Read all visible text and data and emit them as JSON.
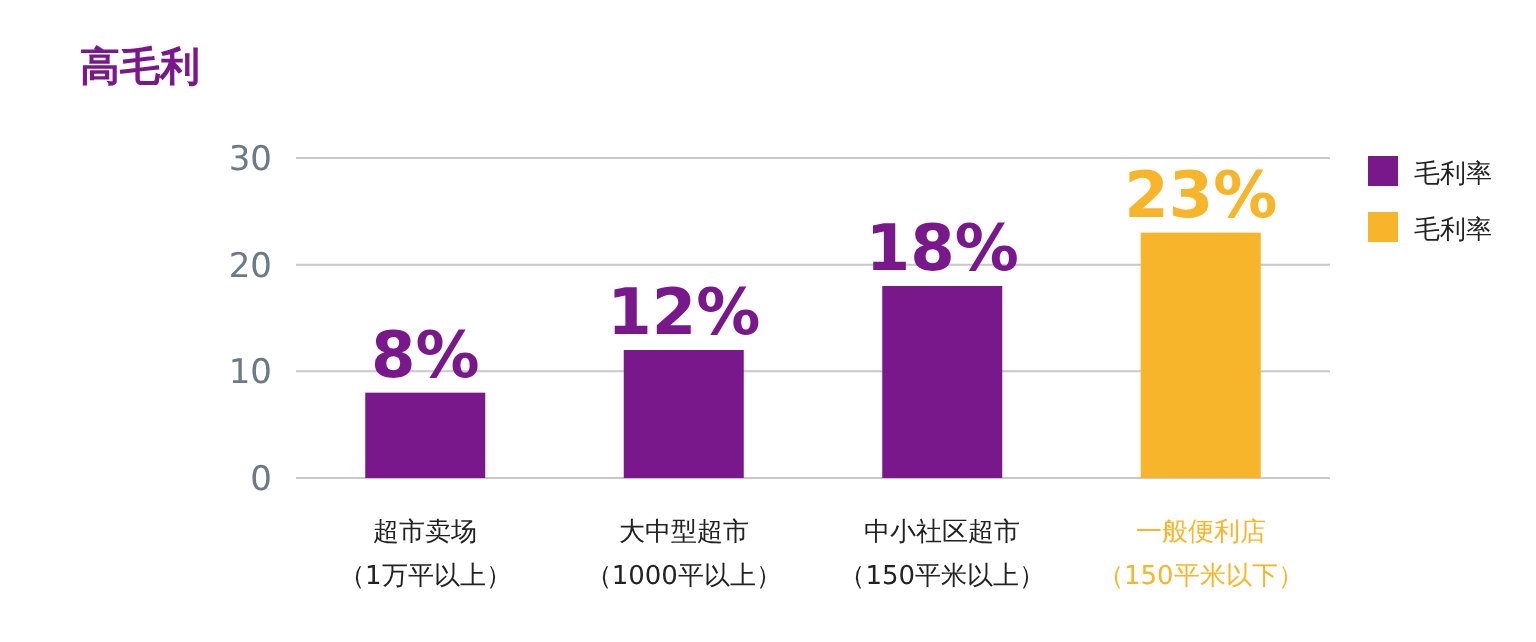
{
  "chart_data": {
    "type": "bar",
    "title": "高毛利",
    "categories": [
      "超市卖场（1万平以上）",
      "大中型超市（1000平以上）",
      "中小社区超市（150平米以上）",
      "一般便利店（150平米以下）"
    ],
    "series": [
      {
        "name": "毛利率",
        "color": "#78188a",
        "values": [
          8,
          12,
          18,
          null
        ],
        "value_labels": [
          "8%",
          "12%",
          "18%",
          null
        ]
      },
      {
        "name": "毛利率",
        "color": "#f7b52c",
        "values": [
          null,
          null,
          null,
          23
        ],
        "value_labels": [
          null,
          null,
          null,
          "23%"
        ]
      }
    ],
    "ylim": [
      0,
      30
    ],
    "yticks": [
      0,
      10,
      20,
      30
    ],
    "grid": "y",
    "legend": "top right"
  }
}
